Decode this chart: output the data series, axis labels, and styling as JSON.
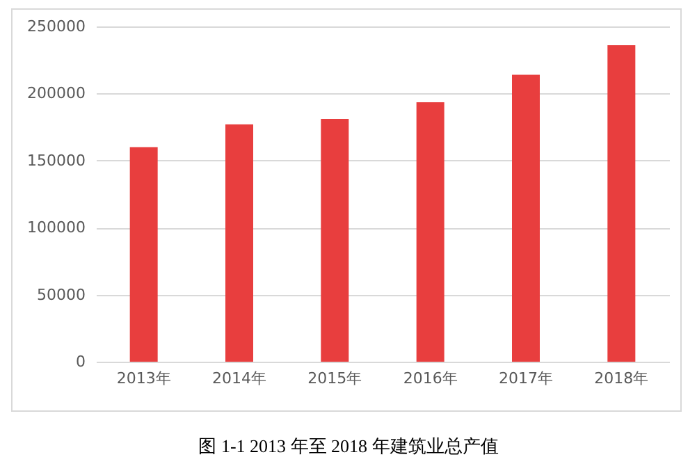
{
  "chart_data": {
    "type": "bar",
    "title": "图 1-1 2013 年至 2018 年建筑业总产值",
    "categories": [
      "2013年",
      "2014年",
      "2015年",
      "2016年",
      "2017年",
      "2018年"
    ],
    "values": [
      160000,
      177000,
      181000,
      193500,
      214000,
      236000
    ],
    "color": "#e83e3e",
    "ylim": [
      0,
      250000
    ],
    "yticks": [
      0,
      50000,
      100000,
      150000,
      200000,
      250000
    ],
    "grid": "y"
  }
}
